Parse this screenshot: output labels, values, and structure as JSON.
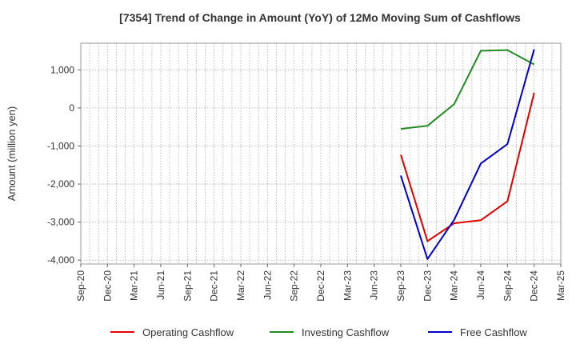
{
  "chart_data": {
    "type": "line",
    "title": "[7354]  Trend of Change in Amount (YoY) of 12Mo Moving Sum of Cashflows",
    "xlabel": "",
    "ylabel": "Amount (million yen)",
    "ylim": [
      -4100,
      1700
    ],
    "yticks": [
      1000,
      0,
      -1000,
      -2000,
      -3000,
      -4000
    ],
    "ytick_labels": [
      "1,000",
      "0",
      "-1,000",
      "-2,000",
      "-3,000",
      "-4,000"
    ],
    "categories": [
      "Sep-20",
      "Dec-20",
      "Mar-21",
      "Jun-21",
      "Sep-21",
      "Dec-21",
      "Mar-22",
      "Jun-22",
      "Sep-22",
      "Dec-22",
      "Mar-23",
      "Jun-23",
      "Sep-23",
      "Dec-23",
      "Mar-24",
      "Jun-24",
      "Sep-24",
      "Dec-24",
      "Mar-25"
    ],
    "grid": true,
    "legend_position": "bottom",
    "series": [
      {
        "name": "Operating Cashflow",
        "color": "#e00000",
        "values": [
          null,
          null,
          null,
          null,
          null,
          null,
          null,
          null,
          null,
          null,
          null,
          null,
          -1230,
          -3500,
          -3030,
          -2950,
          -2450,
          400,
          null
        ]
      },
      {
        "name": "Investing Cashflow",
        "color": "#228b22",
        "values": [
          null,
          null,
          null,
          null,
          null,
          null,
          null,
          null,
          null,
          null,
          null,
          null,
          -550,
          -470,
          100,
          1500,
          1520,
          1140,
          null
        ]
      },
      {
        "name": "Free Cashflow",
        "color": "#0000cc",
        "values": [
          null,
          null,
          null,
          null,
          null,
          null,
          null,
          null,
          null,
          null,
          null,
          null,
          -1780,
          -3970,
          -2940,
          -1460,
          -950,
          1540,
          null
        ]
      }
    ]
  }
}
